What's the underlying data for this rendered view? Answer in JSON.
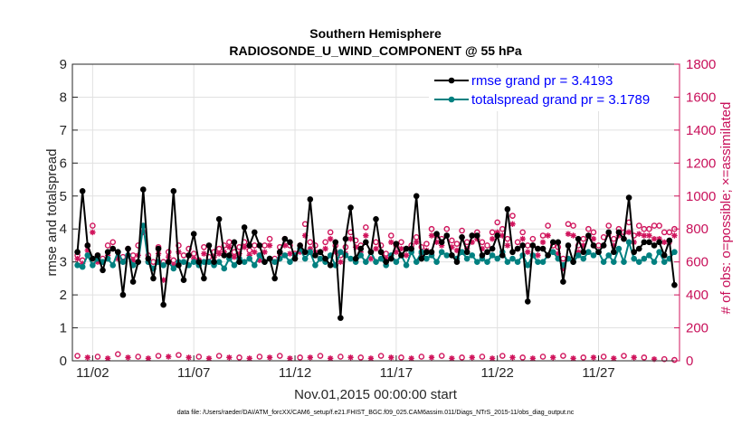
{
  "chart_data": {
    "type": "line",
    "title": "Southern Hemisphere",
    "subtitle": "RADIOSONDE_U_WIND_COMPONENT @ 55 hPa",
    "xlabel": "Nov.01,2015 00:00:00 start",
    "ylabel": "rmse and totalspread",
    "ylabel_right": "# of obs: o=possible; ×=assimilated",
    "footnote": "data file: /Users/raeder/DAI/ATM_forcXX/CAM6_setup/f.e21.FHIST_BGC.f09_025.CAM6assim.011/Diags_NTrS_2015-11/obs_diag_output.nc",
    "xlim": [
      1.0,
      31.0
    ],
    "ylim": [
      0,
      9
    ],
    "ylim_right": [
      0,
      1800
    ],
    "x_ticks": [
      {
        "value": 2,
        "label": "11/02"
      },
      {
        "value": 7,
        "label": "11/07"
      },
      {
        "value": 12,
        "label": "11/12"
      },
      {
        "value": 17,
        "label": "11/17"
      },
      {
        "value": 22,
        "label": "11/22"
      },
      {
        "value": 27,
        "label": "11/27"
      }
    ],
    "y_ticks": [
      "0",
      "1",
      "2",
      "3",
      "4",
      "5",
      "6",
      "7",
      "8",
      "9"
    ],
    "y_ticks_right": [
      "0",
      "200",
      "400",
      "600",
      "800",
      "1000",
      "1200",
      "1400",
      "1600",
      "1800"
    ],
    "grid": true,
    "legend_position": "top-right",
    "colors": {
      "rmse": "#000000",
      "totalspread": "#008080",
      "obs": "#d0145c",
      "grid": "#e1e1e1"
    },
    "series": [
      {
        "name": "rmse grand pr = 3.4193",
        "axis": "left",
        "x": [
          1.25,
          1.5,
          1.75,
          2.0,
          2.25,
          2.5,
          2.75,
          3.0,
          3.25,
          3.5,
          3.75,
          4.0,
          4.25,
          4.5,
          4.75,
          5.0,
          5.25,
          5.5,
          5.75,
          6.0,
          6.25,
          6.5,
          6.75,
          7.0,
          7.25,
          7.5,
          7.75,
          8.0,
          8.25,
          8.5,
          8.75,
          9.0,
          9.25,
          9.5,
          9.75,
          10.0,
          10.25,
          10.5,
          10.75,
          11.0,
          11.25,
          11.5,
          11.75,
          12.0,
          12.25,
          12.5,
          12.75,
          13.0,
          13.25,
          13.5,
          13.75,
          14.0,
          14.25,
          14.5,
          14.75,
          15.0,
          15.25,
          15.5,
          15.75,
          16.0,
          16.25,
          16.5,
          16.75,
          17.0,
          17.25,
          17.5,
          17.75,
          18.0,
          18.25,
          18.5,
          18.75,
          19.0,
          19.25,
          19.5,
          19.75,
          20.0,
          20.25,
          20.5,
          20.75,
          21.0,
          21.25,
          21.5,
          21.75,
          22.0,
          22.25,
          22.5,
          22.75,
          23.0,
          23.25,
          23.5,
          23.75,
          24.0,
          24.25,
          24.5,
          24.75,
          25.0,
          25.25,
          25.5,
          25.75,
          26.0,
          26.25,
          26.5,
          26.75,
          27.0,
          27.25,
          27.5,
          27.75,
          28.0,
          28.25,
          28.5,
          28.75,
          29.0,
          29.25,
          29.5,
          29.75,
          30.0,
          30.25,
          30.5,
          30.75
        ],
        "values": [
          3.3,
          5.15,
          3.5,
          3.1,
          3.2,
          2.75,
          3.3,
          3.4,
          3.3,
          2.0,
          3.4,
          2.4,
          3.0,
          5.2,
          3.1,
          2.5,
          3.4,
          1.7,
          3.0,
          5.15,
          2.9,
          2.45,
          3.2,
          3.85,
          3.0,
          2.5,
          3.5,
          3.0,
          4.3,
          3.2,
          3.2,
          3.6,
          3.0,
          4.05,
          3.5,
          3.9,
          3.5,
          3.0,
          3.1,
          2.5,
          3.3,
          3.7,
          3.6,
          3.1,
          3.5,
          3.3,
          4.9,
          3.2,
          3.3,
          3.1,
          2.9,
          3.6,
          1.3,
          3.7,
          4.65,
          3.1,
          3.4,
          3.6,
          3.3,
          4.3,
          3.3,
          3.0,
          3.1,
          3.55,
          3.2,
          3.4,
          3.4,
          5.0,
          3.1,
          3.3,
          3.3,
          3.85,
          3.6,
          3.8,
          3.2,
          3.0,
          3.75,
          3.3,
          3.8,
          3.8,
          3.2,
          3.3,
          3.4,
          3.8,
          3.2,
          4.6,
          3.3,
          3.4,
          3.5,
          1.8,
          3.5,
          3.4,
          3.4,
          3.2,
          3.6,
          3.6,
          2.4,
          3.5,
          3.0,
          3.7,
          3.3,
          3.8,
          3.5,
          3.3,
          3.5,
          3.9,
          3.3,
          3.9,
          3.7,
          4.95,
          3.3,
          3.4,
          3.6,
          3.6,
          3.5,
          3.6,
          3.2,
          3.65,
          2.3
        ],
        "marker": "dot"
      },
      {
        "name": "totalspread grand pr = 3.1789",
        "axis": "left",
        "x": [
          1.25,
          1.5,
          1.75,
          2.0,
          2.25,
          2.5,
          2.75,
          3.0,
          3.25,
          3.5,
          3.75,
          4.0,
          4.25,
          4.5,
          4.75,
          5.0,
          5.25,
          5.5,
          5.75,
          6.0,
          6.25,
          6.5,
          6.75,
          7.0,
          7.25,
          7.5,
          7.75,
          8.0,
          8.25,
          8.5,
          8.75,
          9.0,
          9.25,
          9.5,
          9.75,
          10.0,
          10.25,
          10.5,
          10.75,
          11.0,
          11.25,
          11.5,
          11.75,
          12.0,
          12.25,
          12.5,
          12.75,
          13.0,
          13.25,
          13.5,
          13.75,
          14.0,
          14.25,
          14.5,
          14.75,
          15.0,
          15.25,
          15.5,
          15.75,
          16.0,
          16.25,
          16.5,
          16.75,
          17.0,
          17.25,
          17.5,
          17.75,
          18.0,
          18.25,
          18.5,
          18.75,
          19.0,
          19.25,
          19.5,
          19.75,
          20.0,
          20.25,
          20.5,
          20.75,
          21.0,
          21.25,
          21.5,
          21.75,
          22.0,
          22.25,
          22.5,
          22.75,
          23.0,
          23.25,
          23.5,
          23.75,
          24.0,
          24.25,
          24.5,
          24.75,
          25.0,
          25.25,
          25.5,
          25.75,
          26.0,
          26.25,
          26.5,
          26.75,
          27.0,
          27.25,
          27.5,
          27.75,
          28.0,
          28.25,
          28.5,
          28.75,
          29.0,
          29.25,
          29.5,
          29.75,
          30.0,
          30.25,
          30.5,
          30.75
        ],
        "values": [
          2.9,
          2.85,
          3.2,
          2.9,
          3.1,
          3.0,
          3.1,
          2.9,
          3.3,
          3.0,
          3.2,
          2.9,
          3.0,
          4.1,
          3.0,
          2.8,
          3.0,
          2.9,
          3.0,
          2.8,
          3.0,
          3.0,
          2.9,
          3.0,
          2.9,
          3.0,
          3.0,
          2.9,
          3.0,
          2.8,
          3.1,
          2.9,
          3.1,
          3.0,
          3.1,
          2.9,
          3.2,
          3.0,
          3.1,
          3.0,
          3.1,
          3.2,
          3.0,
          3.2,
          3.4,
          3.1,
          3.3,
          2.9,
          3.1,
          3.0,
          3.2,
          2.9,
          3.3,
          3.2,
          3.1,
          3.0,
          3.2,
          3.0,
          3.3,
          3.0,
          3.1,
          2.9,
          3.2,
          3.0,
          3.2,
          2.9,
          3.3,
          3.0,
          3.3,
          3.1,
          3.2,
          3.0,
          3.3,
          3.2,
          3.2,
          3.1,
          3.3,
          3.1,
          3.2,
          3.0,
          3.1,
          3.0,
          3.2,
          3.1,
          3.3,
          3.0,
          3.1,
          3.0,
          3.2,
          2.9,
          3.2,
          3.0,
          3.0,
          3.2,
          3.3,
          3.1,
          2.9,
          3.1,
          3.0,
          3.2,
          3.1,
          3.3,
          3.2,
          3.3,
          3.0,
          3.2,
          3.0,
          3.4,
          3.0,
          3.6,
          3.1,
          3.0,
          3.1,
          3.2,
          3.0,
          3.3,
          3.0,
          3.1,
          3.3
        ],
        "marker": "dot"
      },
      {
        "name": "obs possible",
        "axis": "right",
        "marker": "circle",
        "x": [
          1.25,
          1.5,
          1.75,
          2.0,
          2.25,
          2.5,
          2.75,
          3.0,
          3.25,
          3.5,
          3.75,
          4.0,
          4.25,
          4.5,
          4.75,
          5.0,
          5.25,
          5.5,
          5.75,
          6.0,
          6.25,
          6.5,
          6.75,
          7.0,
          7.25,
          7.5,
          7.75,
          8.0,
          8.25,
          8.5,
          8.75,
          9.0,
          9.25,
          9.5,
          9.75,
          10.0,
          10.25,
          10.5,
          10.75,
          11.0,
          11.25,
          11.5,
          11.75,
          12.0,
          12.25,
          12.5,
          12.75,
          13.0,
          13.25,
          13.5,
          13.75,
          14.0,
          14.25,
          14.5,
          14.75,
          15.0,
          15.25,
          15.5,
          15.75,
          16.0,
          16.25,
          16.5,
          16.75,
          17.0,
          17.25,
          17.5,
          17.75,
          18.0,
          18.25,
          18.5,
          18.75,
          19.0,
          19.25,
          19.5,
          19.75,
          20.0,
          20.25,
          20.5,
          20.75,
          21.0,
          21.25,
          21.5,
          21.75,
          22.0,
          22.25,
          22.5,
          22.75,
          23.0,
          23.25,
          23.5,
          23.75,
          24.0,
          24.25,
          24.5,
          24.75,
          25.0,
          25.25,
          25.5,
          25.75,
          26.0,
          26.25,
          26.5,
          26.75,
          27.0,
          27.25,
          27.5,
          27.75,
          28.0,
          28.25,
          28.5,
          28.75,
          29.0,
          29.25,
          29.5,
          29.75,
          30.0,
          30.25,
          30.5,
          30.75
        ],
        "values": [
          640,
          610,
          700,
          820,
          640,
          620,
          700,
          720,
          660,
          630,
          680,
          640,
          700,
          820,
          640,
          600,
          690,
          600,
          660,
          610,
          700,
          640,
          680,
          650,
          610,
          690,
          630,
          660,
          680,
          700,
          720,
          660,
          690,
          720,
          670,
          700,
          640,
          700,
          740,
          620,
          690,
          740,
          700,
          650,
          700,
          830,
          720,
          700,
          660,
          720,
          780,
          700,
          640,
          690,
          780,
          730,
          700,
          810,
          660,
          720,
          700,
          650,
          760,
          700,
          720,
          680,
          700,
          750,
          690,
          710,
          800,
          760,
          740,
          800,
          730,
          710,
          790,
          720,
          760,
          780,
          720,
          700,
          780,
          840,
          800,
          740,
          880,
          720,
          780,
          700,
          740,
          680,
          760,
          820,
          700,
          690,
          620,
          830,
          820,
          700,
          740,
          800,
          780,
          700,
          750,
          820,
          740,
          800,
          780,
          840,
          760,
          820,
          800,
          800,
          820,
          820,
          780,
          780,
          800
        ]
      },
      {
        "name": "obs assimilated",
        "axis": "right",
        "marker": "asterisk",
        "x": [
          1.25,
          1.5,
          1.75,
          2.0,
          2.25,
          2.5,
          2.75,
          3.0,
          3.25,
          3.5,
          3.75,
          4.0,
          4.25,
          4.5,
          4.75,
          5.0,
          5.25,
          5.5,
          5.75,
          6.0,
          6.25,
          6.5,
          6.75,
          7.0,
          7.25,
          7.5,
          7.75,
          8.0,
          8.25,
          8.5,
          8.75,
          9.0,
          9.25,
          9.5,
          9.75,
          10.0,
          10.25,
          10.5,
          10.75,
          11.0,
          11.25,
          11.5,
          11.75,
          12.0,
          12.25,
          12.5,
          12.75,
          13.0,
          13.25,
          13.5,
          13.75,
          14.0,
          14.25,
          14.5,
          14.75,
          15.0,
          15.25,
          15.5,
          15.75,
          16.0,
          16.25,
          16.5,
          16.75,
          17.0,
          17.25,
          17.5,
          17.75,
          18.0,
          18.25,
          18.5,
          18.75,
          19.0,
          19.25,
          19.5,
          19.75,
          20.0,
          20.25,
          20.5,
          20.75,
          21.0,
          21.25,
          21.5,
          21.75,
          22.0,
          22.25,
          22.5,
          22.75,
          23.0,
          23.25,
          23.5,
          23.75,
          24.0,
          24.25,
          24.5,
          24.75,
          25.0,
          25.25,
          25.5,
          25.75,
          26.0,
          26.25,
          26.5,
          26.75,
          27.0,
          27.25,
          27.5,
          27.75,
          28.0,
          28.25,
          28.5,
          28.75,
          29.0,
          29.25,
          29.5,
          29.75,
          30.0,
          30.25,
          30.5,
          30.75
        ],
        "values": [
          620,
          590,
          670,
          780,
          600,
          600,
          640,
          680,
          620,
          600,
          640,
          610,
          640,
          780,
          600,
          560,
          650,
          490,
          630,
          580,
          660,
          600,
          640,
          620,
          580,
          650,
          600,
          630,
          650,
          660,
          690,
          630,
          650,
          690,
          640,
          660,
          610,
          660,
          700,
          600,
          650,
          700,
          650,
          620,
          660,
          760,
          680,
          660,
          620,
          680,
          740,
          660,
          600,
          650,
          740,
          690,
          660,
          760,
          620,
          680,
          660,
          620,
          720,
          660,
          680,
          640,
          660,
          720,
          650,
          670,
          760,
          720,
          700,
          760,
          690,
          670,
          750,
          680,
          720,
          740,
          680,
          660,
          740,
          780,
          760,
          700,
          830,
          680,
          740,
          660,
          700,
          640,
          720,
          760,
          660,
          650,
          560,
          770,
          760,
          660,
          700,
          760,
          740,
          660,
          700,
          770,
          700,
          760,
          740,
          780,
          720,
          770,
          760,
          760,
          740,
          740,
          720,
          720,
          760
        ]
      },
      {
        "name": "obs possible (lower band)",
        "axis": "right",
        "marker": "circle",
        "x": [
          1.25,
          2.25,
          3.25,
          4.25,
          5.25,
          6.25,
          7.25,
          8.25,
          9.25,
          10.25,
          11.25,
          12.25,
          13.25,
          14.25,
          15.25,
          16.25,
          17.25,
          18.25,
          19.25,
          20.25,
          21.25,
          22.25,
          23.25,
          24.25,
          25.25,
          26.25,
          27.25,
          28.25,
          29.25,
          30.25,
          30.75
        ],
        "values": [
          30,
          25,
          40,
          25,
          30,
          35,
          25,
          30,
          20,
          25,
          30,
          20,
          30,
          25,
          20,
          30,
          20,
          25,
          30,
          20,
          25,
          30,
          20,
          25,
          30,
          20,
          25,
          30,
          20,
          10,
          5
        ]
      },
      {
        "name": "obs assimilated (lower band)",
        "axis": "right",
        "marker": "asterisk",
        "x": [
          1.75,
          2.75,
          3.75,
          4.75,
          5.75,
          6.75,
          7.75,
          8.75,
          9.75,
          10.75,
          11.75,
          12.75,
          13.75,
          14.75,
          15.75,
          16.75,
          17.75,
          18.75,
          19.75,
          20.75,
          21.75,
          22.75,
          23.75,
          24.75,
          25.75,
          26.75,
          27.75,
          28.75,
          29.75
        ],
        "values": [
          20,
          15,
          20,
          15,
          25,
          20,
          15,
          20,
          15,
          20,
          15,
          20,
          15,
          20,
          15,
          20,
          15,
          20,
          15,
          20,
          15,
          20,
          15,
          20,
          15,
          20,
          15,
          20,
          10
        ]
      }
    ]
  }
}
